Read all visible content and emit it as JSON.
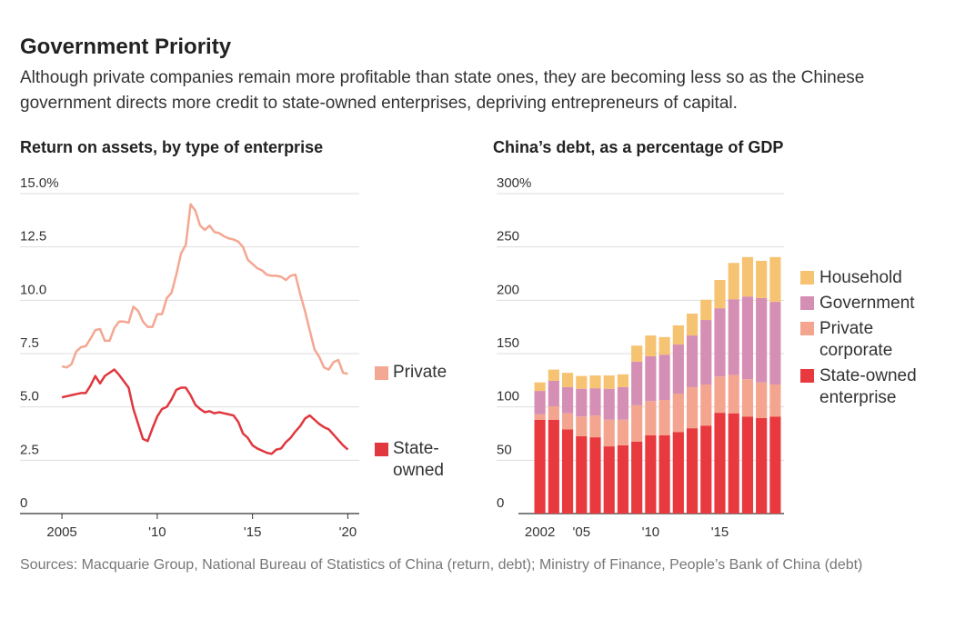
{
  "title": "Government Priority",
  "subtitle": "Although private companies remain more profitable than state ones, they are becoming less so as the Chinese government directs more credit to state-owned enterprises, depriving entrepreneurs of capital.",
  "source": "Sources: Macquarie Group, National Bureau of Statistics of China (return, debt); Ministry of Finance, People’s Bank of China (debt)",
  "chart_data": [
    {
      "type": "line",
      "title": "Return on assets, by type of enterprise",
      "x": [
        2005,
        2005.25,
        2005.5,
        2005.75,
        2006,
        2006.25,
        2006.5,
        2006.75,
        2007,
        2007.25,
        2007.5,
        2007.75,
        2008,
        2008.25,
        2008.5,
        2008.75,
        2009,
        2009.25,
        2009.5,
        2009.75,
        2010,
        2010.25,
        2010.5,
        2010.75,
        2011,
        2011.25,
        2011.5,
        2011.75,
        2012,
        2012.25,
        2012.5,
        2012.75,
        2013,
        2013.25,
        2013.5,
        2013.75,
        2014,
        2014.25,
        2014.5,
        2014.75,
        2015,
        2015.25,
        2015.5,
        2015.75,
        2016,
        2016.25,
        2016.5,
        2016.75,
        2017,
        2017.25,
        2017.5,
        2017.75,
        2018,
        2018.25,
        2018.5,
        2018.75,
        2019,
        2019.25,
        2019.5,
        2019.75,
        2020
      ],
      "series": [
        {
          "name": "Private",
          "color": "#f4a792",
          "values": [
            6.9,
            6.85,
            7.0,
            7.6,
            7.8,
            7.85,
            8.2,
            8.6,
            8.65,
            8.1,
            8.1,
            8.7,
            9.0,
            9.0,
            8.95,
            9.7,
            9.5,
            9.0,
            8.75,
            8.75,
            9.35,
            9.35,
            10.1,
            10.35,
            11.2,
            12.2,
            12.6,
            14.5,
            14.2,
            13.5,
            13.3,
            13.5,
            13.2,
            13.15,
            13.0,
            12.9,
            12.85,
            12.75,
            12.5,
            11.9,
            11.7,
            11.5,
            11.4,
            11.2,
            11.15,
            11.15,
            11.1,
            10.95,
            11.15,
            11.2,
            10.3,
            9.5,
            8.6,
            7.7,
            7.35,
            6.85,
            6.75,
            7.1,
            7.2,
            6.6,
            6.55
          ]
        },
        {
          "name": "State-owned",
          "color": "#e0383e",
          "values": [
            5.45,
            5.5,
            5.55,
            5.6,
            5.65,
            5.65,
            6.0,
            6.45,
            6.1,
            6.45,
            6.6,
            6.75,
            6.5,
            6.2,
            5.9,
            4.9,
            4.2,
            3.5,
            3.4,
            4.0,
            4.55,
            4.9,
            5.0,
            5.35,
            5.8,
            5.9,
            5.9,
            5.55,
            5.1,
            4.9,
            4.75,
            4.8,
            4.7,
            4.75,
            4.7,
            4.65,
            4.6,
            4.3,
            3.75,
            3.55,
            3.2,
            3.05,
            2.95,
            2.85,
            2.8,
            3.0,
            3.05,
            3.35,
            3.55,
            3.85,
            4.1,
            4.45,
            4.6,
            4.4,
            4.2,
            4.05,
            3.95,
            3.7,
            3.45,
            3.2,
            3.0
          ]
        }
      ],
      "xlim": [
        2002.8,
        2020.6
      ],
      "xticks": [
        2005,
        {
          "value": 2010,
          "label": "'10"
        },
        {
          "value": 2015,
          "label": "'15"
        },
        {
          "value": 2020,
          "label": "'20"
        }
      ],
      "ylim": [
        0,
        15
      ],
      "yticks": [
        0,
        2.5,
        {
          "value": 5,
          "label": "5.0"
        },
        7.5,
        {
          "value": 10,
          "label": "10.0"
        },
        12.5,
        {
          "value": 15,
          "label": "15.0%"
        }
      ],
      "grid": true
    },
    {
      "type": "bar",
      "stacked": true,
      "title": "China’s debt, as a percentage of GDP",
      "categories": [
        "2002",
        null,
        null,
        "'05",
        null,
        null,
        null,
        null,
        "'10",
        null,
        null,
        null,
        null,
        "'15",
        null,
        null,
        null,
        null
      ],
      "series": [
        {
          "name": "State-owned enterprise",
          "color": "#e8393f",
          "values": [
            88,
            88,
            79,
            72.5,
            71.5,
            63,
            64,
            67.5,
            73.5,
            73.5,
            76.5,
            80,
            82.5,
            94.5,
            94,
            91,
            89.5,
            91
          ]
        },
        {
          "name": "Private corporate",
          "color": "#f4a58f",
          "values": [
            5,
            12.5,
            15,
            18.5,
            20.5,
            25,
            24,
            34,
            32,
            33,
            36,
            38.5,
            38.5,
            34,
            36,
            35,
            33.5,
            30
          ]
        },
        {
          "name": "Government",
          "color": "#d68fb4",
          "values": [
            22,
            24,
            24.5,
            26,
            25.5,
            29,
            30.5,
            41,
            42,
            42.5,
            46,
            48.5,
            60.5,
            64,
            71,
            77.5,
            79,
            77.5
          ]
        },
        {
          "name": "Household",
          "color": "#f6c372",
          "values": [
            8,
            10.5,
            13.5,
            12,
            12,
            12.5,
            12,
            15,
            19.5,
            16.5,
            18,
            20.5,
            19,
            26.5,
            34,
            37,
            35,
            42
          ]
        }
      ],
      "ylim": [
        0,
        300
      ],
      "yticks": [
        0,
        50,
        100,
        150,
        200,
        250,
        {
          "value": 300,
          "label": "300%"
        }
      ],
      "grid": true
    }
  ]
}
